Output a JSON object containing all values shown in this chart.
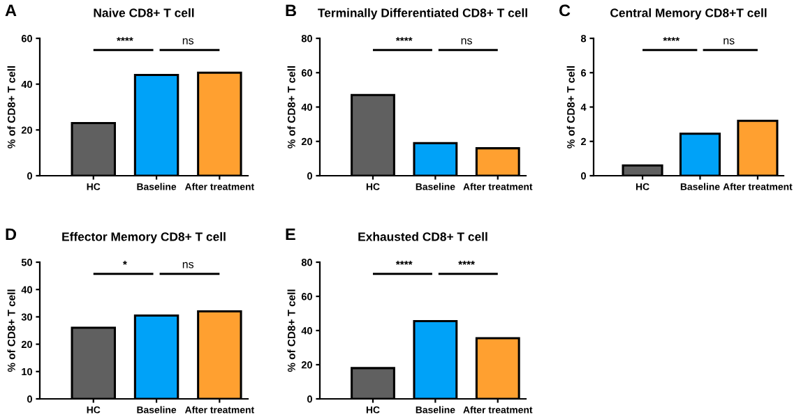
{
  "chart_data": [
    {
      "type": "bar",
      "title": "Naive CD8+ T cell",
      "ylabel": "% of CD8+ T cell",
      "categories": [
        "HC",
        "Baseline",
        "After treatment"
      ],
      "values": [
        23,
        44,
        45
      ],
      "colors": [
        "#606060",
        "#00a2f8",
        "#ffa030"
      ],
      "ylim": [
        0,
        60
      ],
      "yticks": [
        0,
        20,
        40,
        60
      ],
      "grid": false,
      "annotations": [
        "A",
        "****",
        "ns"
      ]
    },
    {
      "type": "bar",
      "title": "Terminally Differentiated CD8+ T cell",
      "ylabel": "% of CD8+ T cell",
      "categories": [
        "HC",
        "Baseline",
        "After treatment"
      ],
      "values": [
        47,
        19,
        16
      ],
      "colors": [
        "#606060",
        "#00a2f8",
        "#ffa030"
      ],
      "ylim": [
        0,
        80
      ],
      "yticks": [
        0,
        20,
        40,
        60,
        80
      ],
      "grid": false,
      "annotations": [
        "B",
        "****",
        "ns"
      ]
    },
    {
      "type": "bar",
      "title": "Central Memory CD8+T cell",
      "ylabel": "% of CD8+ T cell",
      "categories": [
        "HC",
        "Baseline",
        "After treatment"
      ],
      "values": [
        0.6,
        2.45,
        3.2
      ],
      "colors": [
        "#606060",
        "#00a2f8",
        "#ffa030"
      ],
      "ylim": [
        0,
        8
      ],
      "yticks": [
        0,
        2,
        4,
        6,
        8
      ],
      "grid": false,
      "annotations": [
        "C",
        "****",
        "ns"
      ]
    },
    {
      "type": "bar",
      "title": "Effector Memory CD8+ T cell",
      "ylabel": "% of CD8+ T cell",
      "categories": [
        "HC",
        "Baseline",
        "After treatment"
      ],
      "values": [
        26,
        30.5,
        32
      ],
      "colors": [
        "#606060",
        "#00a2f8",
        "#ffa030"
      ],
      "ylim": [
        0,
        50
      ],
      "yticks": [
        0,
        10,
        20,
        30,
        40,
        50
      ],
      "grid": false,
      "annotations": [
        "D",
        "*",
        "ns"
      ]
    },
    {
      "type": "bar",
      "title": "Exhausted CD8+ T cell",
      "ylabel": "% of CD8+ T cell",
      "categories": [
        "HC",
        "Baseline",
        "After treatment"
      ],
      "values": [
        18,
        45.5,
        35.5
      ],
      "colors": [
        "#606060",
        "#00a2f8",
        "#ffa030"
      ],
      "ylim": [
        0,
        80
      ],
      "yticks": [
        0,
        20,
        40,
        60,
        80
      ],
      "grid": false,
      "annotations": [
        "E",
        "****",
        "****"
      ]
    }
  ]
}
